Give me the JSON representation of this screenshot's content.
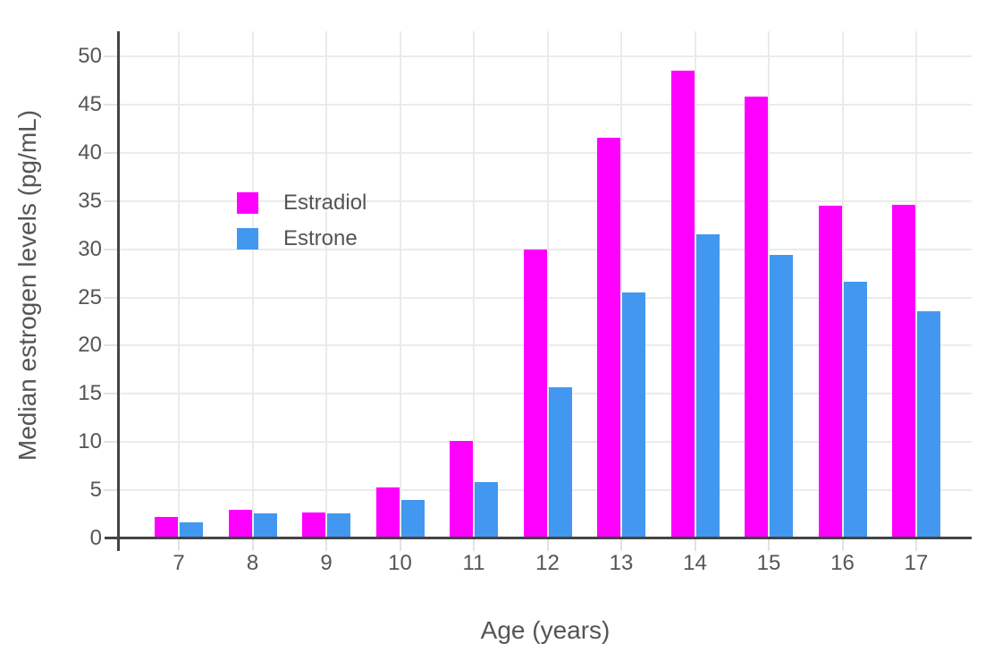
{
  "chart_data": {
    "type": "bar",
    "title": "",
    "categories": [
      "7",
      "8",
      "9",
      "10",
      "11",
      "12",
      "13",
      "14",
      "15",
      "16",
      "17"
    ],
    "series": [
      {
        "name": "Estradiol",
        "color": "#FF00FF",
        "values": [
          2.2,
          3.0,
          2.7,
          5.3,
          10.1,
          30.0,
          41.6,
          48.5,
          45.8,
          34.5,
          34.6
        ]
      },
      {
        "name": "Estrone",
        "color": "#4298F0",
        "values": [
          1.7,
          2.6,
          2.6,
          4.0,
          5.8,
          15.7,
          25.5,
          31.5,
          29.4,
          26.6,
          23.6
        ]
      }
    ],
    "xlabel": "Age (years)",
    "ylabel": "Median estrogen levels (pg/mL)",
    "ylim": [
      0,
      52.6
    ],
    "yticks": [
      0,
      5,
      10,
      15,
      20,
      25,
      30,
      35,
      40,
      45,
      50
    ],
    "grid": true,
    "legend_position": "inside-upper-left"
  },
  "colors": {
    "background": "#FFFFFF",
    "gridline": "#EBEBEB",
    "axis_line": "#444444",
    "tick_mark": "#E2E2E2",
    "text": "#555555"
  }
}
